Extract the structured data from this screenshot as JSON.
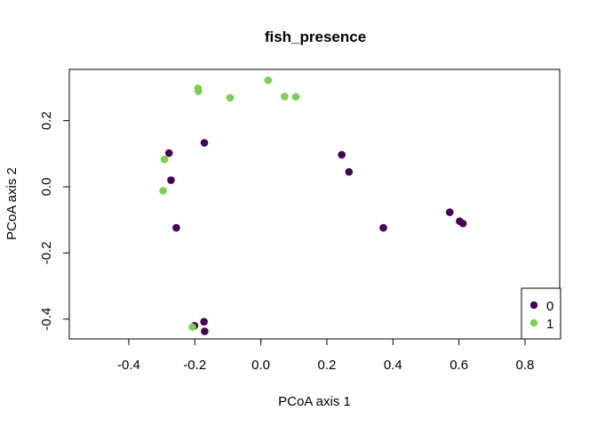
{
  "chart_data": {
    "type": "scatter",
    "title": "fish_presence",
    "xlabel": "PCoA axis 1",
    "ylabel": "PCoA axis 2",
    "xlim": [
      -0.58,
      0.905
    ],
    "ylim": [
      -0.46,
      0.355
    ],
    "xticks": [
      -0.4,
      -0.2,
      0.0,
      0.2,
      0.4,
      0.6,
      0.8
    ],
    "xtick_labels": [
      "-0.4",
      "-0.2",
      "0.0",
      "0.2",
      "0.4",
      "0.6",
      "0.8"
    ],
    "yticks": [
      -0.4,
      -0.2,
      0.0,
      0.2
    ],
    "ytick_labels": [
      "-0.4",
      "-0.2",
      "0.0",
      "0.2"
    ],
    "grid": false,
    "legend_position": "bottom-right",
    "series": [
      {
        "name": "0",
        "color": "#440154",
        "points": [
          {
            "x": -0.278,
            "y": 0.102
          },
          {
            "x": -0.171,
            "y": 0.133
          },
          {
            "x": -0.272,
            "y": 0.02
          },
          {
            "x": -0.256,
            "y": -0.124
          },
          {
            "x": 0.245,
            "y": 0.097
          },
          {
            "x": 0.267,
            "y": 0.045
          },
          {
            "x": 0.371,
            "y": -0.124
          },
          {
            "x": 0.572,
            "y": -0.077
          },
          {
            "x": 0.602,
            "y": -0.104
          },
          {
            "x": 0.612,
            "y": -0.111
          },
          {
            "x": -0.172,
            "y": -0.408
          },
          {
            "x": -0.201,
            "y": -0.42
          },
          {
            "x": -0.17,
            "y": -0.437
          }
        ]
      },
      {
        "name": "1",
        "color": "#7AD151",
        "points": [
          {
            "x": -0.19,
            "y": 0.298
          },
          {
            "x": -0.189,
            "y": 0.289
          },
          {
            "x": -0.093,
            "y": 0.269
          },
          {
            "x": 0.022,
            "y": 0.322
          },
          {
            "x": 0.072,
            "y": 0.273
          },
          {
            "x": 0.106,
            "y": 0.272
          },
          {
            "x": -0.292,
            "y": 0.083
          },
          {
            "x": -0.296,
            "y": -0.012
          },
          {
            "x": -0.207,
            "y": -0.424
          }
        ]
      }
    ]
  }
}
